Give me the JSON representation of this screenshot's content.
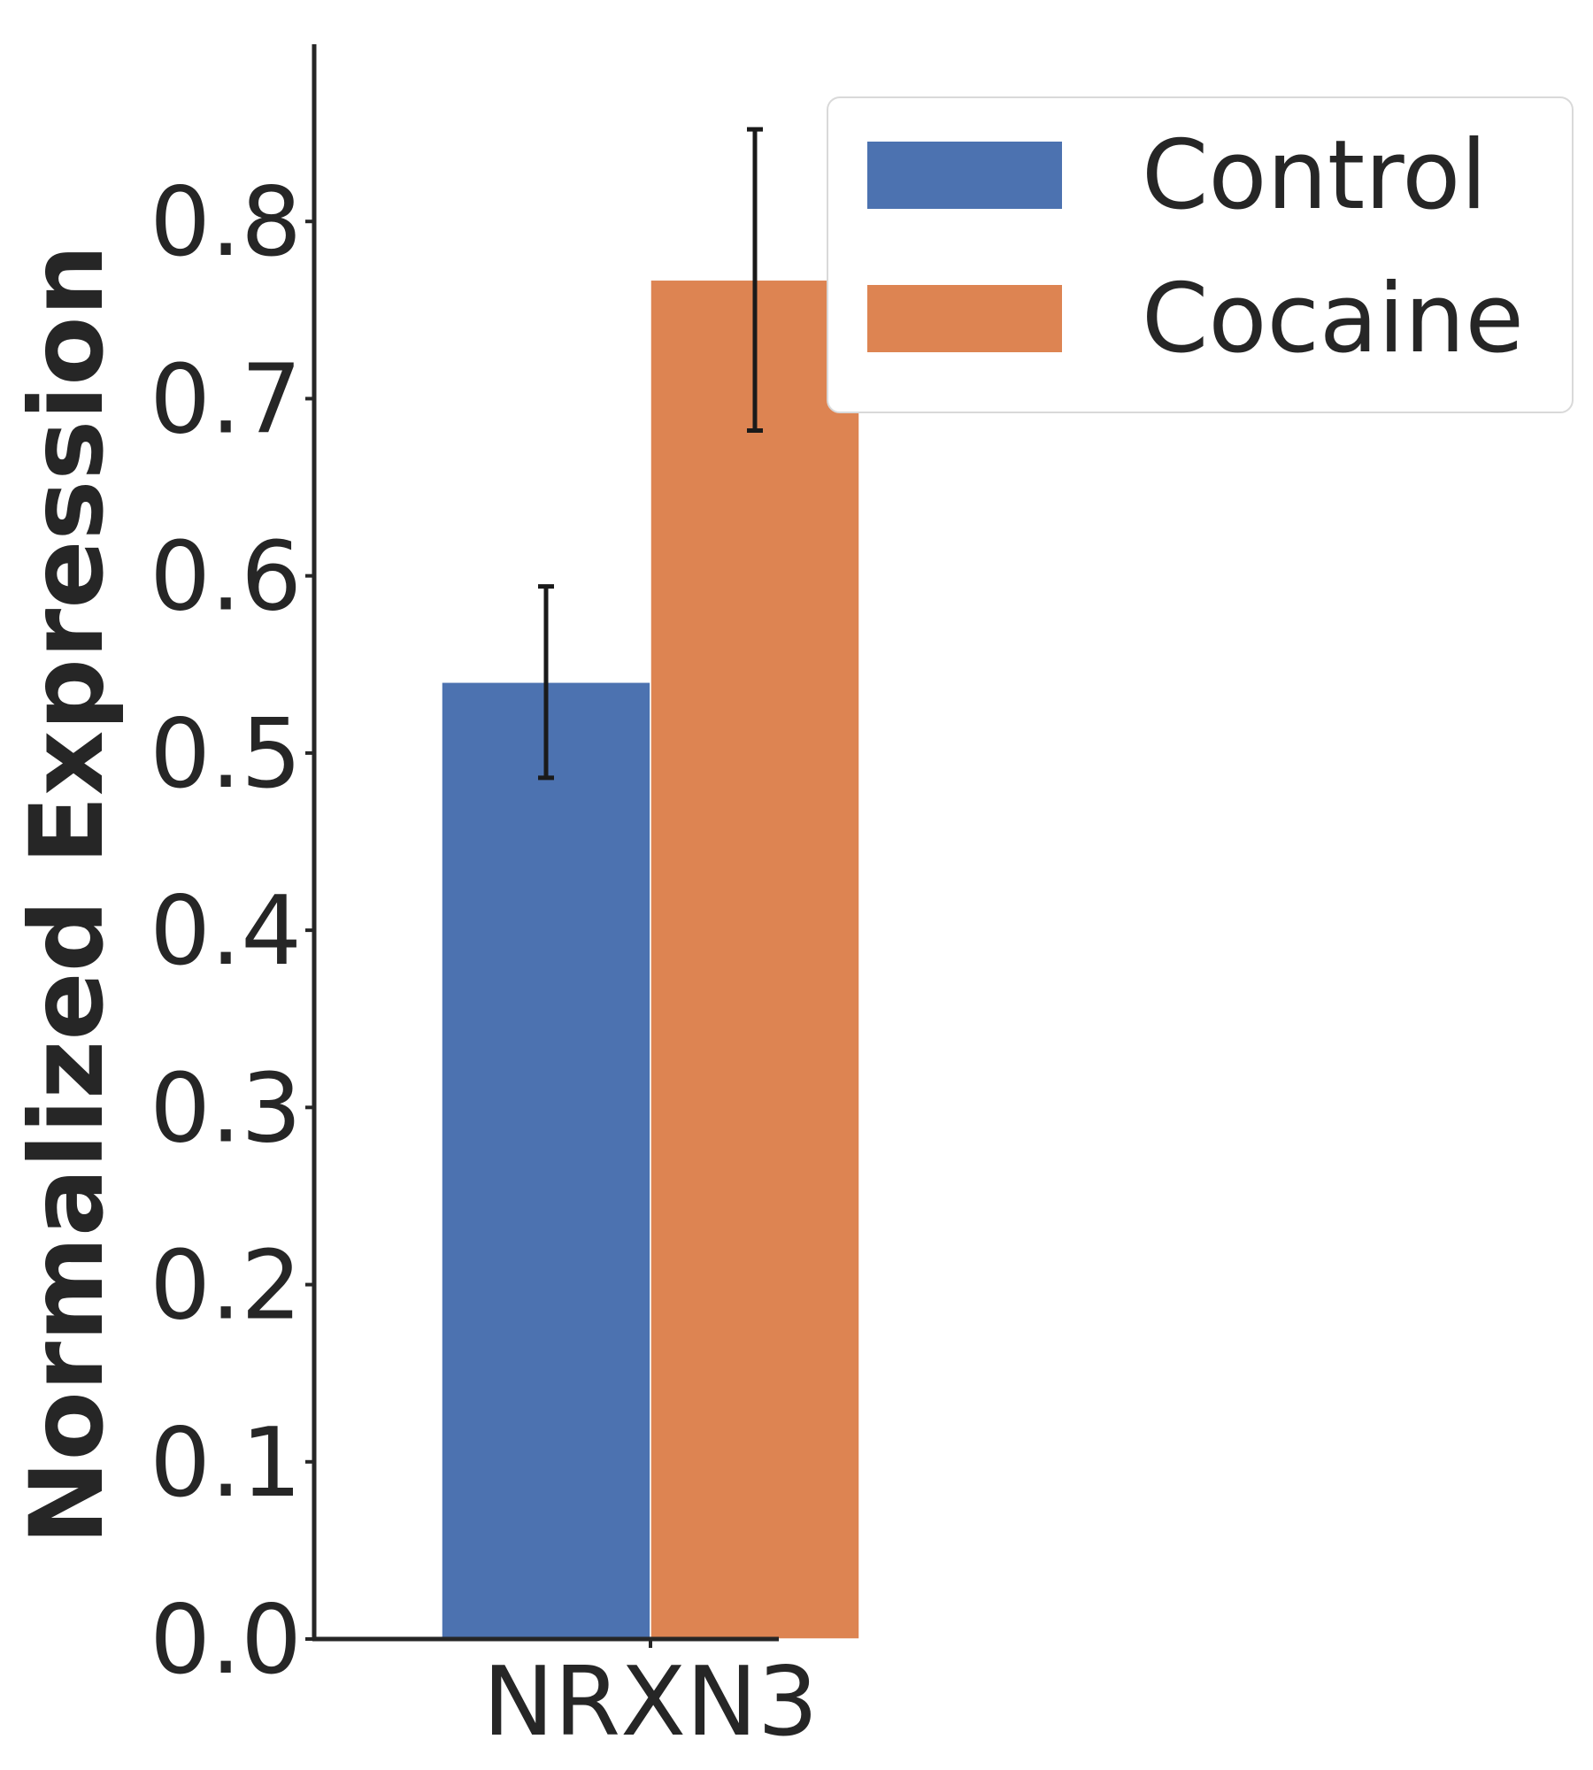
{
  "chart_data": {
    "type": "bar",
    "title": "",
    "xlabel": "",
    "ylabel": "Normalized Expression",
    "categories": [
      "NRXN3"
    ],
    "series": [
      {
        "name": "Control",
        "values": [
          0.54
        ],
        "error": [
          {
            "low": 0.486,
            "high": 0.594
          }
        ],
        "color": "#4c72b0"
      },
      {
        "name": "Cocaine",
        "values": [
          0.767
        ],
        "error": [
          {
            "low": 0.682,
            "high": 0.852
          }
        ],
        "color": "#dd8452"
      }
    ],
    "ylim": [
      0,
      0.9
    ],
    "yticks": [
      0.0,
      0.1,
      0.2,
      0.3,
      0.4,
      0.5,
      0.6,
      0.7,
      0.8
    ],
    "ytick_labels": [
      "0.0",
      "0.1",
      "0.2",
      "0.3",
      "0.4",
      "0.5",
      "0.6",
      "0.7",
      "0.8"
    ],
    "grid": false,
    "legend": {
      "position": "top-right",
      "entries": [
        "Control",
        "Cocaine"
      ]
    }
  }
}
